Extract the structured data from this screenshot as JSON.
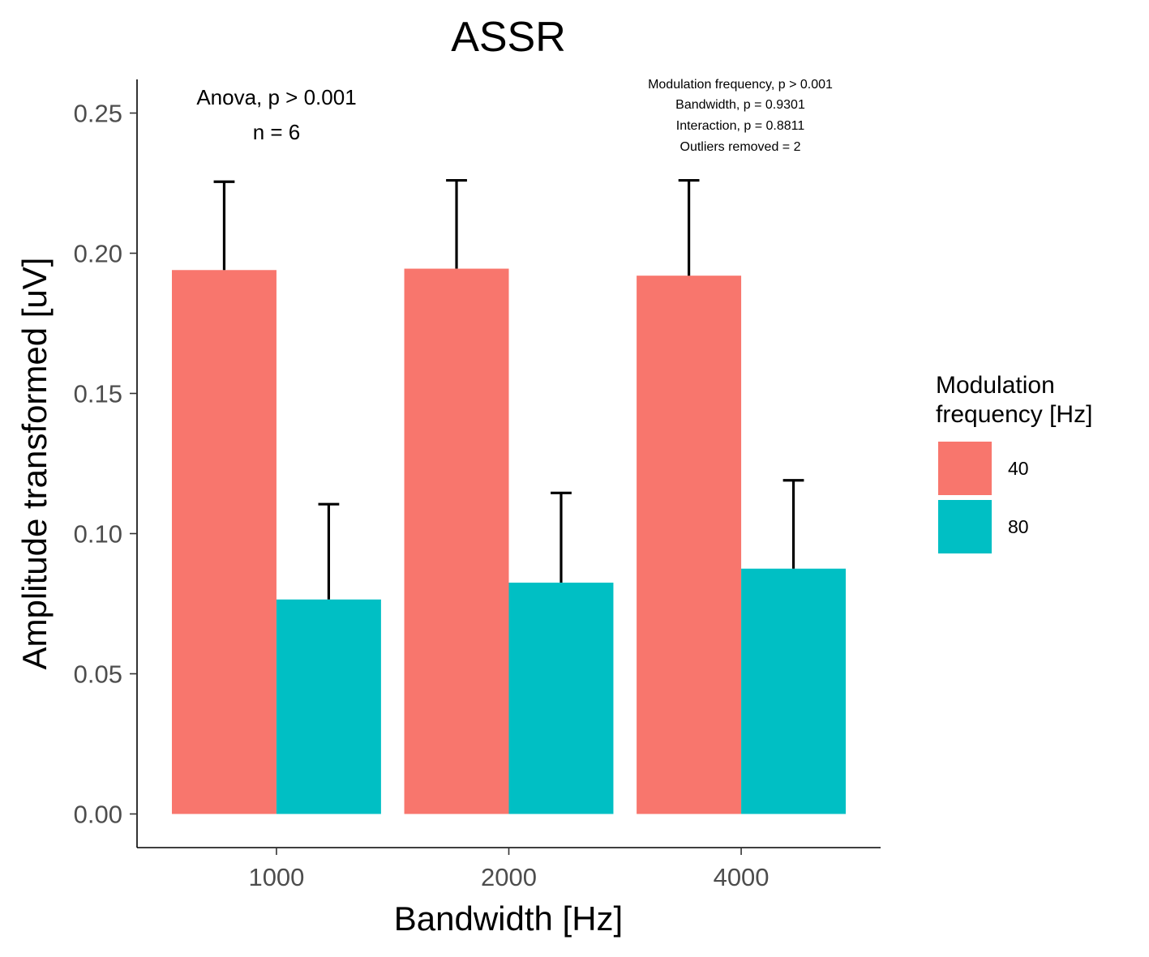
{
  "chart_data": {
    "type": "bar",
    "title": "ASSR",
    "xlabel": "Bandwidth [Hz]",
    "ylabel": "Amplitude transformed [uV]",
    "categories": [
      "1000",
      "2000",
      "4000"
    ],
    "ylim": [
      -0.012,
      0.262
    ],
    "yticks": [
      "0.00",
      "0.05",
      "0.10",
      "0.15",
      "0.20",
      "0.25"
    ],
    "legend": {
      "title_lines": [
        "Modulation",
        "frequency [Hz]"
      ],
      "placement": "right"
    },
    "series": [
      {
        "name": "40",
        "color": "#F8766D",
        "values": [
          0.194,
          0.1945,
          0.192
        ],
        "error_upper": [
          0.2255,
          0.226,
          0.226
        ]
      },
      {
        "name": "80",
        "color": "#00BFC4",
        "values": [
          0.0765,
          0.0825,
          0.0875
        ],
        "error_upper": [
          0.1105,
          0.1145,
          0.119
        ]
      }
    ],
    "annotations": {
      "left": [
        "Anova, p > 0.001",
        "n = 6"
      ],
      "right": [
        "Modulation frequency, p > 0.001",
        "Bandwidth, p = 0.9301",
        "Interaction, p = 0.8811",
        "Outliers removed = 2"
      ]
    },
    "grid": false
  }
}
